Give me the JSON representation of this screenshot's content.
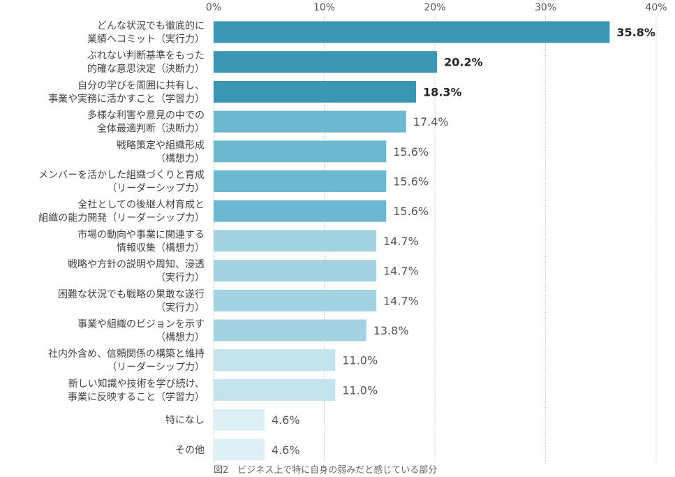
{
  "chart_data": {
    "type": "bar",
    "orientation": "horizontal",
    "caption": "図2　ビジネス上で特に自身の弱みだと感じている部分",
    "xlim": [
      0,
      40
    ],
    "ticks": [
      "0%",
      "10%",
      "20%",
      "30%",
      "40%"
    ],
    "tick_values": [
      0,
      10,
      20,
      30,
      40
    ],
    "grid": true,
    "categories": [
      [
        "どんな状況でも徹底的に",
        "業績へコミット（実行力）"
      ],
      [
        "ぶれない判断基準をもった",
        "的確な意思決定（決断力）"
      ],
      [
        "自分の学びを周囲に共有し、",
        "事業や実務に活かすこと（学習力）"
      ],
      [
        "多様な利害や意見の中での",
        "全体最適判断（決断力）"
      ],
      [
        "戦略策定や組織形成",
        "（構想力）"
      ],
      [
        "メンバーを活かした組織づくりと育成",
        "（リーダーシップ力）"
      ],
      [
        "全社としての後継人材育成と",
        "組織の能力開発（リーダーシップ力）"
      ],
      [
        "市場の動向や事業に関連する",
        "情報収集（構想力）"
      ],
      [
        "戦略や方針の説明や周知、浸透",
        "（実行力）"
      ],
      [
        "困難な状況でも戦略の果敢な遂行",
        "（実行力）"
      ],
      [
        "事業や組織のビジョンを示す",
        "（構想力）"
      ],
      [
        "社内外含め、信頼関係の構築と維持",
        "（リーダーシップ力）"
      ],
      [
        "新しい知識や技術を学び続け、",
        "事業に反映すること（学習力）"
      ],
      [
        "特になし"
      ],
      [
        "その他"
      ]
    ],
    "values": [
      35.8,
      20.2,
      18.3,
      17.4,
      15.6,
      15.6,
      15.6,
      14.7,
      14.7,
      14.7,
      13.8,
      11.0,
      11.0,
      4.6,
      4.6
    ],
    "value_labels": [
      "35.8%",
      "20.2%",
      "18.3%",
      "17.4%",
      "15.6%",
      "15.6%",
      "15.6%",
      "14.7%",
      "14.7%",
      "14.7%",
      "13.8%",
      "11.0%",
      "11.0%",
      "4.6%",
      "4.6%"
    ],
    "bold_labels": [
      true,
      true,
      true,
      false,
      false,
      false,
      false,
      false,
      false,
      false,
      false,
      false,
      false,
      false,
      false
    ],
    "colors": [
      "#3a96b2",
      "#3a96b2",
      "#3a96b2",
      "#6bb8d0",
      "#6bb8d0",
      "#6bb8d0",
      "#6bb8d0",
      "#a3d3e2",
      "#a3d3e2",
      "#a3d3e2",
      "#a3d3e2",
      "#c3e3ed",
      "#c3e3ed",
      "#deeff5",
      "#deeff5"
    ]
  }
}
